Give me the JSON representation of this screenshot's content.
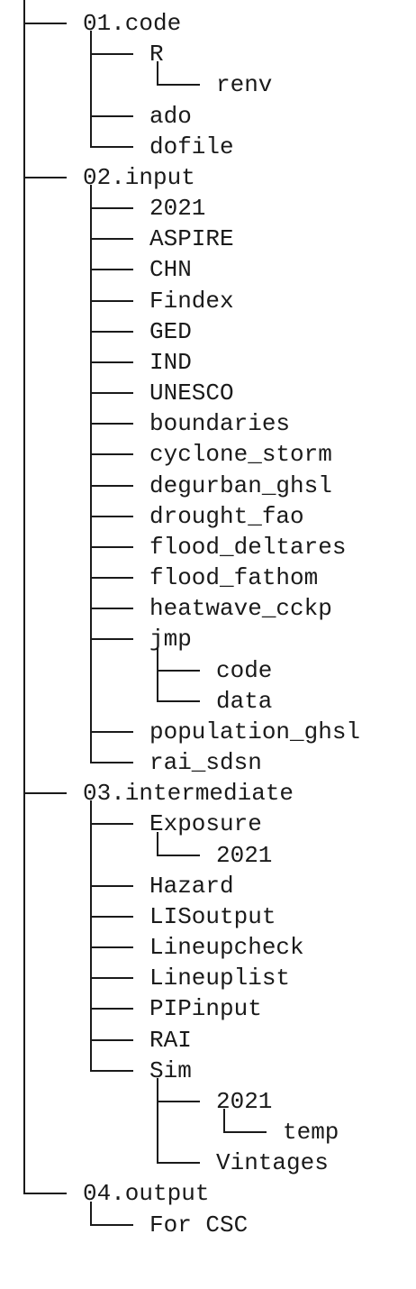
{
  "tree": {
    "children": [
      {
        "name": "01.code",
        "children": [
          {
            "name": "R",
            "children": [
              {
                "name": "renv"
              }
            ]
          },
          {
            "name": "ado"
          },
          {
            "name": "dofile"
          }
        ]
      },
      {
        "name": "02.input",
        "children": [
          {
            "name": "2021"
          },
          {
            "name": "ASPIRE"
          },
          {
            "name": "CHN"
          },
          {
            "name": "Findex"
          },
          {
            "name": "GED"
          },
          {
            "name": "IND"
          },
          {
            "name": "UNESCO"
          },
          {
            "name": "boundaries"
          },
          {
            "name": "cyclone_storm"
          },
          {
            "name": "degurban_ghsl"
          },
          {
            "name": "drought_fao"
          },
          {
            "name": "flood_deltares"
          },
          {
            "name": "flood_fathom"
          },
          {
            "name": "heatwave_cckp"
          },
          {
            "name": "jmp",
            "children": [
              {
                "name": "code"
              },
              {
                "name": "data"
              }
            ]
          },
          {
            "name": "population_ghsl"
          },
          {
            "name": "rai_sdsn"
          }
        ]
      },
      {
        "name": "03.intermediate",
        "children": [
          {
            "name": "Exposure",
            "children": [
              {
                "name": "2021"
              }
            ]
          },
          {
            "name": "Hazard"
          },
          {
            "name": "LISoutput"
          },
          {
            "name": "Lineupcheck"
          },
          {
            "name": "Lineuplist"
          },
          {
            "name": "PIPinput"
          },
          {
            "name": "RAI"
          },
          {
            "name": "Sim",
            "children": [
              {
                "name": "2021",
                "children": [
                  {
                    "name": "temp"
                  }
                ]
              },
              {
                "name": "Vintages"
              }
            ]
          }
        ]
      },
      {
        "name": "04.output",
        "children": [
          {
            "name": "For CSC"
          }
        ]
      }
    ]
  }
}
